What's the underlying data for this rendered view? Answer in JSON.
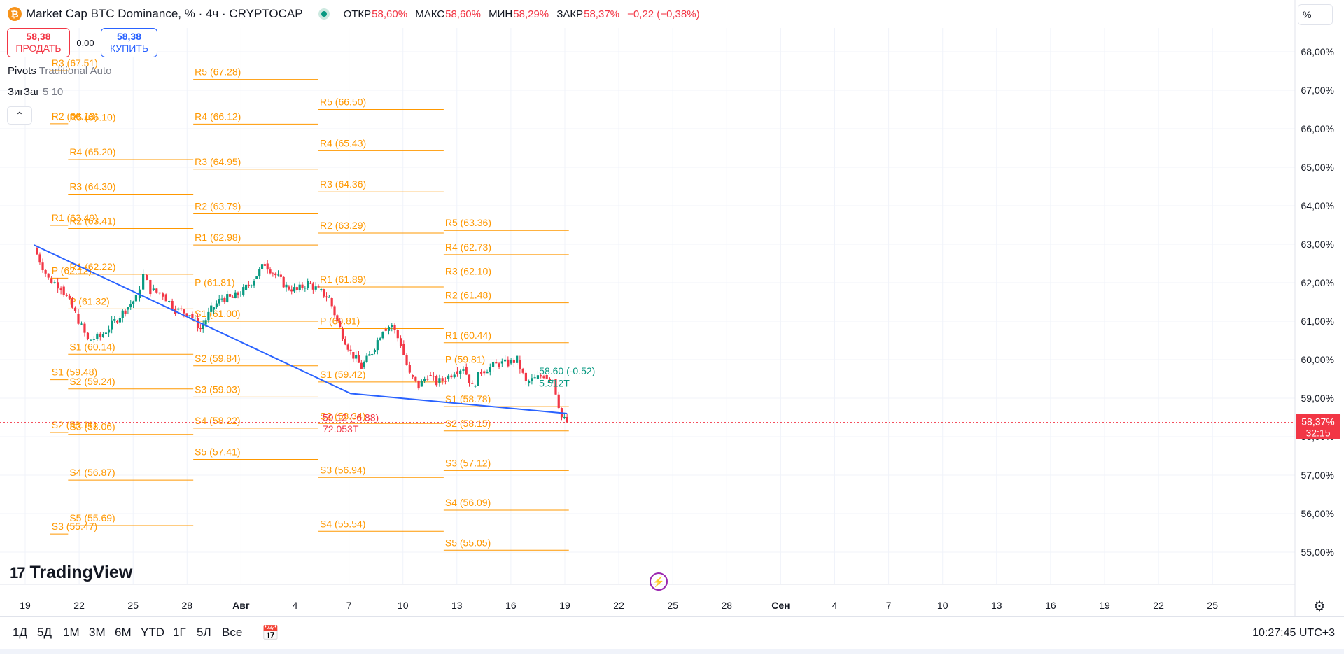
{
  "header": {
    "symbol_icon": "bitcoin-icon",
    "title": "Market Cap BTC Dominance, % · 4ч · CRYPTOCAP",
    "open_label": "ОТКР",
    "open_value": "58,60%",
    "high_label": "МАКС",
    "high_value": "58,60%",
    "low_label": "МИН",
    "low_value": "58,29%",
    "close_label": "ЗАКР",
    "close_value": "58,37%",
    "change_value": "−0,22 (−0,38%)",
    "scale_button": "%"
  },
  "trade": {
    "sell_price": "58,38",
    "sell_label": "ПРОДАТЬ",
    "spread": "0,00",
    "buy_price": "58,38",
    "buy_label": "КУПИТЬ"
  },
  "indicators": {
    "pivots_name": "Pivots",
    "pivots_params": "Traditional Auto",
    "zigzag_name": "ЗигЗаг",
    "zigzag_params": "5 10"
  },
  "logo_text": "TradingView",
  "timeframes": [
    "1Д",
    "5Д",
    "1М",
    "3М",
    "6М",
    "YTD",
    "1Г",
    "5Л",
    "Все"
  ],
  "clock": "10:27:45 UTC+3",
  "colors": {
    "pivot": "#ff9800",
    "trend": "#2962ff",
    "up": "#089981",
    "down": "#f23645",
    "grid": "#f0f3fa"
  },
  "chart_data": {
    "type": "candlestick",
    "title": "Market Cap BTC Dominance, % · 4ч · CRYPTOCAP",
    "ylim": [
      54.6,
      68.6
    ],
    "y_ticks": [
      "55,00%",
      "56,00%",
      "57,00%",
      "58,00%",
      "59,00%",
      "60,00%",
      "61,00%",
      "62,00%",
      "63,00%",
      "64,00%",
      "65,00%",
      "66,00%",
      "67,00%",
      "68,00%"
    ],
    "x_ticks": [
      "19",
      "22",
      "25",
      "28",
      "Авг",
      "4",
      "7",
      "10",
      "13",
      "16",
      "19",
      "22",
      "25",
      "28",
      "Сен",
      "4",
      "7",
      "10",
      "13",
      "16",
      "19",
      "22",
      "25"
    ],
    "last_price": "58,37%",
    "last_countdown": "32:15",
    "last_value": 58.37,
    "pivot_periods": [
      {
        "x0": 16.4,
        "x1": 17.4,
        "levels": [
          {
            "label": "R3 (67.51)",
            "v": 67.51
          },
          {
            "label": "R2 (66.13)",
            "v": 66.13
          },
          {
            "label": "R1 (63.49)",
            "v": 63.49
          },
          {
            "label": "P (62.12)",
            "v": 62.12
          },
          {
            "label": "S1 (59.48)",
            "v": 59.48
          },
          {
            "label": "S2 (58.11)",
            "v": 58.11
          },
          {
            "label": "S3 (55.47)",
            "v": 55.47
          }
        ]
      },
      {
        "x0": 17.4,
        "x1": 24.4,
        "levels": [
          {
            "label": "R5 (66.10)",
            "v": 66.1
          },
          {
            "label": "R4 (65.20)",
            "v": 65.2
          },
          {
            "label": "R3 (64.30)",
            "v": 64.3
          },
          {
            "label": "R2 (63.41)",
            "v": 63.41
          },
          {
            "label": "R1 (62.22)",
            "v": 62.22
          },
          {
            "label": "P (61.32)",
            "v": 61.32
          },
          {
            "label": "S1 (60.14)",
            "v": 60.14
          },
          {
            "label": "S2 (59.24)",
            "v": 59.24
          },
          {
            "label": "S3 (58.06)",
            "v": 58.06
          },
          {
            "label": "S4 (56.87)",
            "v": 56.87
          },
          {
            "label": "S5 (55.69)",
            "v": 55.69
          }
        ]
      },
      {
        "x0": 24.4,
        "x1": 31.4,
        "levels": [
          {
            "label": "R5 (67.28)",
            "v": 67.28
          },
          {
            "label": "R4 (66.12)",
            "v": 66.12
          },
          {
            "label": "R3 (64.95)",
            "v": 64.95
          },
          {
            "label": "R2 (63.79)",
            "v": 63.79
          },
          {
            "label": "R1 (62.98)",
            "v": 62.98
          },
          {
            "label": "P (61.81)",
            "v": 61.81
          },
          {
            "label": "S1 (61.00)",
            "v": 61.0
          },
          {
            "label": "S2 (59.84)",
            "v": 59.84
          },
          {
            "label": "S3 (59.03)",
            "v": 59.03
          },
          {
            "label": "S4 (58.22)",
            "v": 58.22
          },
          {
            "label": "S5 (57.41)",
            "v": 57.41
          }
        ]
      },
      {
        "x0": 31.4,
        "x1": 38.4,
        "levels": [
          {
            "label": "R5 (66.50)",
            "v": 66.5
          },
          {
            "label": "R4 (65.43)",
            "v": 65.43
          },
          {
            "label": "R3 (64.36)",
            "v": 64.36
          },
          {
            "label": "R2 (63.29)",
            "v": 63.29
          },
          {
            "label": "R1 (61.89)",
            "v": 61.89
          },
          {
            "label": "P (60.81)",
            "v": 60.81
          },
          {
            "label": "S1 (59.42)",
            "v": 59.42
          },
          {
            "label": "S2 (58.34)",
            "v": 58.34
          },
          {
            "label": "S3 (56.94)",
            "v": 56.94
          },
          {
            "label": "S4 (55.54)",
            "v": 55.54
          }
        ]
      },
      {
        "x0": 38.4,
        "x1": 45.4,
        "levels": [
          {
            "label": "R5 (63.36)",
            "v": 63.36
          },
          {
            "label": "R4 (62.73)",
            "v": 62.73
          },
          {
            "label": "R3 (62.10)",
            "v": 62.1
          },
          {
            "label": "R2 (61.48)",
            "v": 61.48
          },
          {
            "label": "R1 (60.44)",
            "v": 60.44
          },
          {
            "label": "P (59.81)",
            "v": 59.81
          },
          {
            "label": "S1 (58.78)",
            "v": 58.78
          },
          {
            "label": "S2 (58.15)",
            "v": 58.15
          },
          {
            "label": "S3 (57.12)",
            "v": 57.12
          },
          {
            "label": "S4 (56.09)",
            "v": 56.09
          },
          {
            "label": "S5 (55.05)",
            "v": 55.05
          }
        ]
      }
    ],
    "trend_line": [
      {
        "x": 15.5,
        "y": 62.98
      },
      {
        "x": 33.2,
        "y": 59.12
      },
      {
        "x": 45.3,
        "y": 58.6
      }
    ],
    "zigzag_labels": [
      {
        "text": "59.12 (-6.88)",
        "x": 33.2,
        "y": 58.41,
        "color": "#f23645"
      },
      {
        "text": "72.053T",
        "x": 33.2,
        "y": 58.11,
        "color": "#f23645"
      },
      {
        "text": "58.60 (-0.52)",
        "x": 45.3,
        "y": 59.62,
        "color": "#089981"
      },
      {
        "text": "5.512T",
        "x": 45.3,
        "y": 59.3,
        "color": "#089981"
      }
    ],
    "candle_anchors": [
      [
        15.5,
        62.9
      ],
      [
        16.3,
        62.1
      ],
      [
        17.0,
        61.9
      ],
      [
        17.8,
        61.2
      ],
      [
        18.5,
        60.5
      ],
      [
        19.2,
        60.6
      ],
      [
        20.0,
        61.0
      ],
      [
        20.6,
        61.3
      ],
      [
        21.2,
        61.6
      ],
      [
        21.6,
        62.2
      ],
      [
        22.0,
        61.8
      ],
      [
        22.7,
        61.7
      ],
      [
        23.4,
        61.3
      ],
      [
        24.2,
        61.2
      ],
      [
        24.8,
        60.8
      ],
      [
        25.4,
        61.3
      ],
      [
        26.0,
        61.6
      ],
      [
        26.6,
        61.6
      ],
      [
        27.2,
        61.8
      ],
      [
        27.8,
        62.1
      ],
      [
        28.4,
        62.5
      ],
      [
        29.0,
        62.2
      ],
      [
        29.6,
        61.9
      ],
      [
        30.2,
        61.8
      ],
      [
        30.8,
        62.0
      ],
      [
        31.4,
        61.8
      ],
      [
        32.0,
        61.6
      ],
      [
        32.6,
        60.8
      ],
      [
        33.2,
        60.2
      ],
      [
        33.8,
        59.8
      ],
      [
        34.4,
        60.2
      ],
      [
        35.0,
        60.8
      ],
      [
        35.5,
        60.9
      ],
      [
        36.0,
        60.4
      ],
      [
        36.5,
        59.6
      ],
      [
        37.0,
        59.3
      ],
      [
        37.5,
        59.6
      ],
      [
        38.0,
        59.4
      ],
      [
        38.5,
        59.5
      ],
      [
        39.0,
        59.7
      ],
      [
        39.5,
        59.8
      ],
      [
        40.0,
        59.3
      ],
      [
        40.5,
        59.7
      ],
      [
        41.0,
        59.8
      ],
      [
        41.5,
        59.9
      ],
      [
        42.0,
        59.9
      ],
      [
        42.5,
        60.0
      ],
      [
        43.0,
        59.4
      ],
      [
        43.5,
        59.5
      ],
      [
        44.0,
        59.6
      ],
      [
        44.5,
        59.5
      ],
      [
        45.0,
        58.5
      ],
      [
        45.3,
        58.37
      ]
    ]
  }
}
